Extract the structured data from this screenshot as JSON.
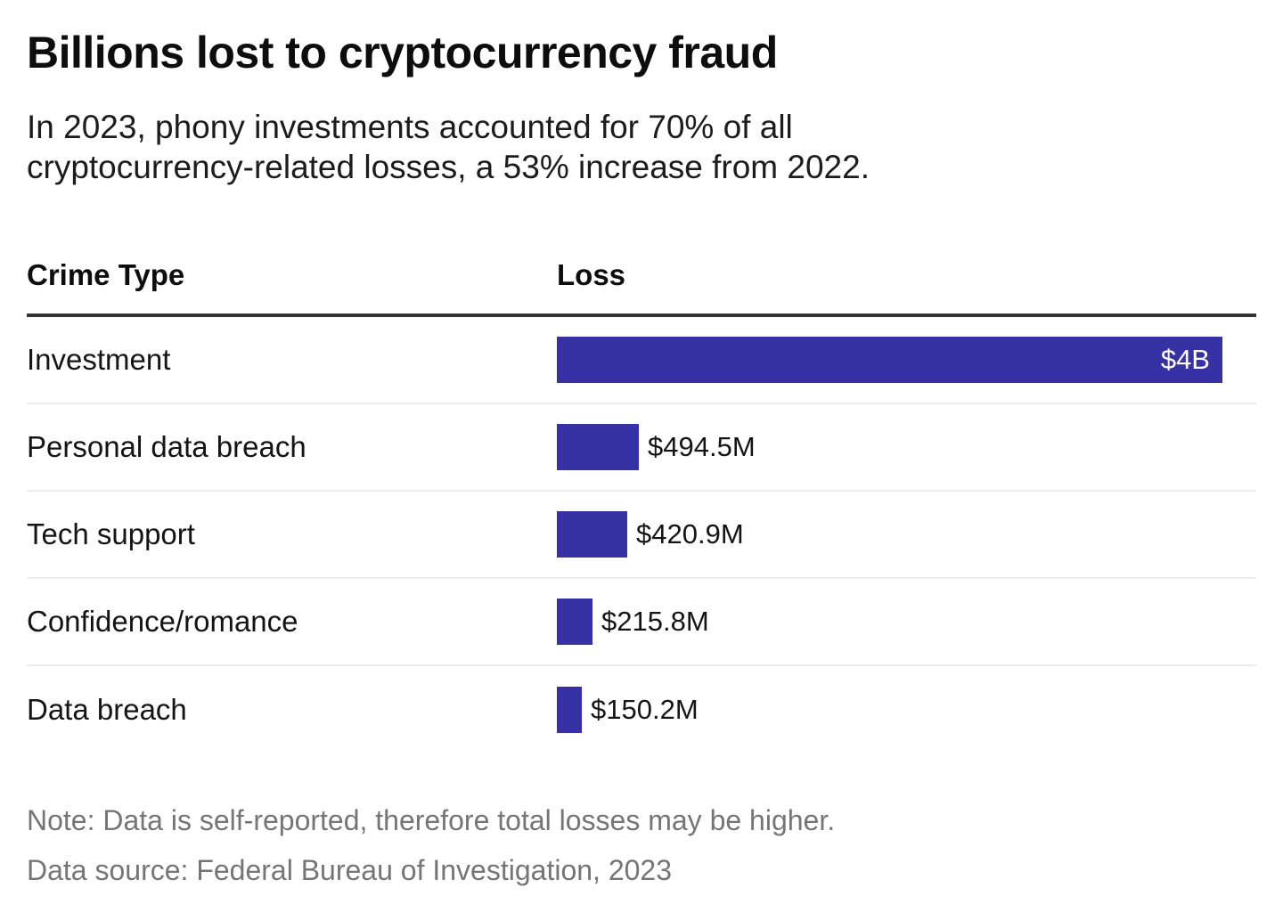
{
  "chart_data": {
    "type": "bar",
    "orientation": "horizontal",
    "title": "Billions lost to cryptocurrency fraud",
    "subtitle": "In 2023, phony investments accounted for 70% of all cryptocurrency-related losses, a 53% increase from 2022.",
    "subtitle_lines": [
      "In 2023, phony investments accounted for 70% of all",
      "cryptocurrency-related losses, a 53% increase from 2022."
    ],
    "columns": [
      "Crime Type",
      "Loss"
    ],
    "categories": [
      "Investment",
      "Personal data breach",
      "Tech support",
      "Confidence/romance",
      "Data breach"
    ],
    "values": [
      4000,
      494.5,
      420.9,
      215.8,
      150.2
    ],
    "unit": "USD millions",
    "value_labels": [
      "$4B",
      "$494.5M",
      "$420.9M",
      "$215.8M",
      "$150.2M"
    ],
    "xlim": [
      0,
      4000
    ],
    "bar_color": "#3632A6",
    "grid": "off",
    "legend": "none",
    "note": "Note: Data is self-reported, therefore total losses may be higher.",
    "source": "Data source: Federal Bureau of Investigation, 2023"
  }
}
